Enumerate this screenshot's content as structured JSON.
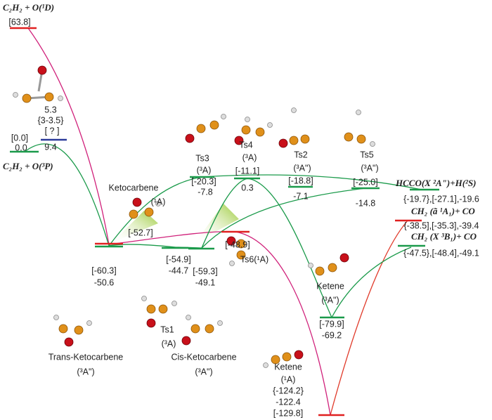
{
  "labels": [
    "C₂H₂ + O(¹D)",
    "[63.8]",
    "5.3",
    "{3-3.5}",
    "[0.0]",
    "[ ? ]",
    "0.0",
    "9.4",
    "C₂H₂ + O(³P)",
    "Ketocarbene",
    "(¹A)",
    "[-52.7]",
    "[-60.3]",
    "-50.6",
    "[-54.9]",
    "-44.7",
    "Ts1",
    "(³A)",
    "[-59.3]",
    "-49.1",
    "[-48.9]",
    "Ts6(¹A)",
    "Trans-Ketocarbene",
    "(³A\")",
    "Cis-Ketocarbene",
    "(³A\")",
    "Ts3",
    "(³A)",
    "[-20.3]",
    "-7.8",
    "Ts4",
    "(³A)",
    "[-11.1]",
    "0.3",
    "Ts2",
    "(³A\")",
    "[-18.8]",
    "-7.1",
    "Ts5",
    "(³A\")",
    "[-25.0]",
    "-14.8",
    "HCCO(X ²A\")+H(²S)",
    "{-19.7},[-27.1],-19.6",
    "CH₂ (ã ¹A₁)+ CO",
    "{-38.5],[-35.3],-39.4",
    "CH₂ (X ³B₁)+ CO",
    "{-47.5},[-48.4],-49.1",
    "Ketene",
    "(³A\")",
    "[-79.9]",
    "-69.2",
    "Ketene",
    "(¹A)",
    "{-124.2}",
    "-122.4",
    "[-129.8]"
  ]
}
